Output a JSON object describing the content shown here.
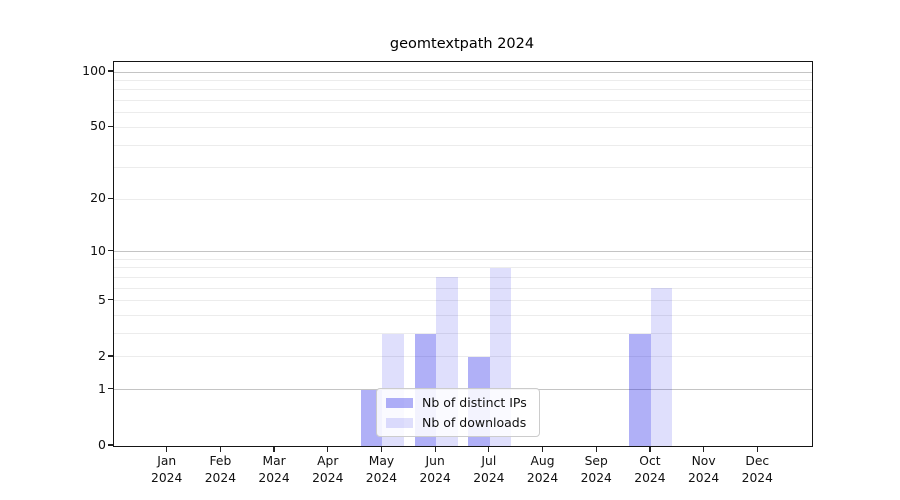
{
  "chart_data": {
    "type": "bar",
    "title": "geomtextpath 2024",
    "year_label": "2024",
    "categories": [
      "Jan",
      "Feb",
      "Mar",
      "Apr",
      "May",
      "Jun",
      "Jul",
      "Aug",
      "Sep",
      "Oct",
      "Nov",
      "Dec"
    ],
    "series": [
      {
        "name": "Nb of distinct IPs",
        "color": "rgba(28,28,232,0.35)",
        "values": [
          0,
          0,
          0,
          0,
          1,
          3,
          2,
          0,
          0,
          3,
          0,
          0
        ]
      },
      {
        "name": "Nb of downloads",
        "color": "rgba(28,28,232,0.14)",
        "values": [
          0,
          0,
          0,
          0,
          3,
          7,
          8,
          0,
          0,
          6,
          0,
          0
        ]
      }
    ],
    "y_axis": {
      "scale": "log1p",
      "ylim": [
        0,
        100
      ],
      "tick_values": [
        0,
        1,
        2,
        5,
        10,
        20,
        50,
        100
      ],
      "minor_grid_values": [
        2,
        3,
        4,
        5,
        6,
        7,
        8,
        9,
        20,
        30,
        40,
        50,
        60,
        70,
        80,
        90
      ],
      "major_grid_values": [
        1,
        10,
        100
      ]
    },
    "legend_position": "lower center",
    "grid": "on"
  }
}
